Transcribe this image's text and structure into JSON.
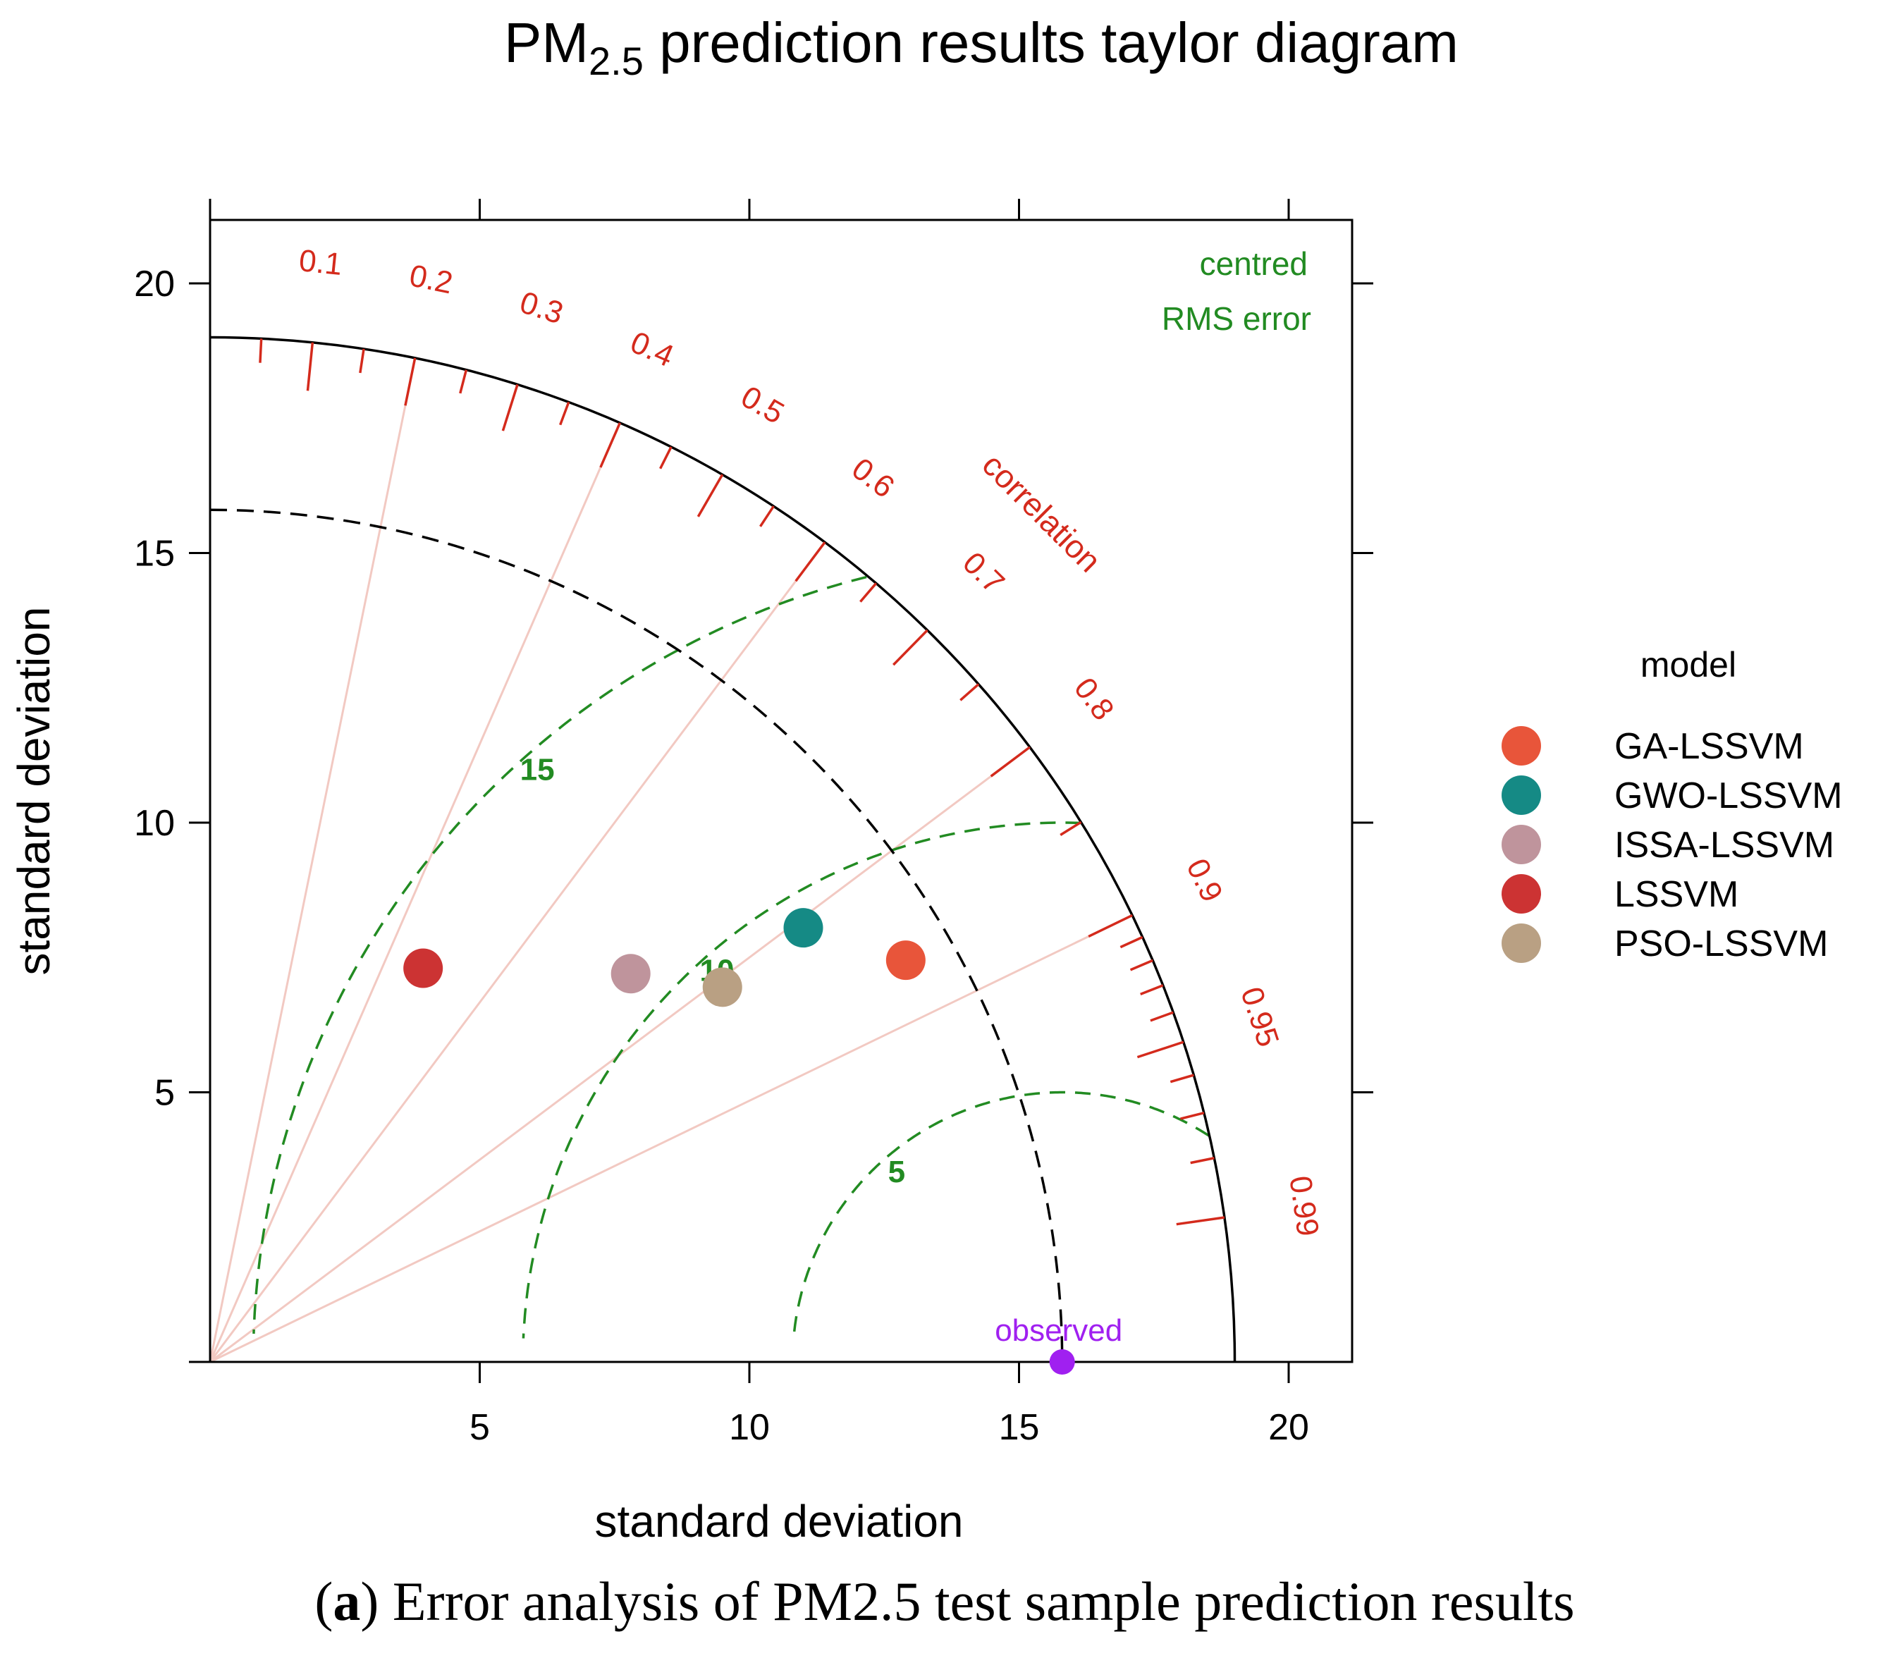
{
  "chart_data": {
    "type": "taylor",
    "title": {
      "prefix": "PM",
      "subscript": "2.5",
      "suffix": " prediction results taylor diagram"
    },
    "xlabel": "standard deviation",
    "ylabel": "standard deviation",
    "xlim": [
      0,
      21.2
    ],
    "ylim": [
      0,
      21.2
    ],
    "x_ticks": [
      5,
      10,
      15,
      20
    ],
    "y_ticks": [
      5,
      10,
      15,
      20
    ],
    "max_sd": 19,
    "observed": {
      "label": "observed",
      "sd": 15.8,
      "color": "#a020f0"
    },
    "correlation_label": "correlation",
    "correlation_labels": [
      "0.1",
      "0.2",
      "0.3",
      "0.4",
      "0.5",
      "0.6",
      "0.7",
      "0.8",
      "0.9",
      "0.95",
      "0.99"
    ],
    "correlation_major": [
      0.1,
      0.2,
      0.3,
      0.4,
      0.5,
      0.6,
      0.7,
      0.8,
      0.9,
      0.95,
      0.99
    ],
    "correlation_minor": [
      0.05,
      0.15,
      0.25,
      0.35,
      0.45,
      0.55,
      0.65,
      0.75,
      0.85,
      0.91,
      0.92,
      0.93,
      0.94,
      0.96,
      0.97,
      0.98
    ],
    "radial_lines": [
      0.2,
      0.4,
      0.6,
      0.8,
      0.9
    ],
    "rms_title": [
      "centred",
      "RMS error"
    ],
    "rms_contours": [
      5,
      10,
      15
    ],
    "rms_labels": [
      "5",
      "10",
      "15"
    ],
    "legend_title": "model",
    "series": [
      {
        "name": "GA-LSSVM",
        "x": 12.9,
        "y": 7.45,
        "color": "#e8553a"
      },
      {
        "name": "GWO-LSSVM",
        "x": 11.0,
        "y": 8.05,
        "color": "#158a85"
      },
      {
        "name": "ISSA-LSSVM",
        "x": 7.8,
        "y": 7.2,
        "color": "#bf949c"
      },
      {
        "name": "LSSVM",
        "x": 3.95,
        "y": 7.3,
        "color": "#cc3333"
      },
      {
        "name": "PSO-LSSVM",
        "x": 9.5,
        "y": 6.95,
        "color": "#b9a083"
      }
    ],
    "colors": {
      "correlation": "#d42a1c",
      "rms": "#228b22",
      "radial": "#f2c9c2",
      "frame": "#000000"
    }
  },
  "caption": {
    "label": "a",
    "text": " Error analysis of PM2.5 test sample prediction results"
  }
}
